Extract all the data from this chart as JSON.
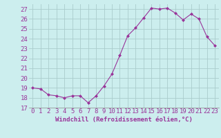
{
  "x": [
    0,
    1,
    2,
    3,
    4,
    5,
    6,
    7,
    8,
    9,
    10,
    11,
    12,
    13,
    14,
    15,
    16,
    17,
    18,
    19,
    20,
    21,
    22,
    23
  ],
  "y": [
    19.0,
    18.9,
    18.3,
    18.2,
    18.0,
    18.2,
    18.2,
    17.5,
    18.2,
    19.2,
    20.4,
    22.3,
    24.3,
    25.1,
    26.1,
    27.1,
    27.0,
    27.1,
    26.6,
    25.9,
    26.5,
    26.0,
    24.2,
    23.3
  ],
  "line_color": "#993399",
  "marker": "D",
  "marker_size": 2.5,
  "bg_color": "#cceeee",
  "grid_color": "#aacccc",
  "xlabel": "Windchill (Refroidissement éolien,°C)",
  "xlabel_color": "#993399",
  "tick_color": "#993399",
  "ylim": [
    17,
    27.5
  ],
  "yticks": [
    17,
    18,
    19,
    20,
    21,
    22,
    23,
    24,
    25,
    26,
    27
  ],
  "xlim": [
    -0.5,
    23.5
  ],
  "xticks": [
    0,
    1,
    2,
    3,
    4,
    5,
    6,
    7,
    8,
    9,
    10,
    11,
    12,
    13,
    14,
    15,
    16,
    17,
    18,
    19,
    20,
    21,
    22,
    23
  ],
  "font_size": 6.5
}
